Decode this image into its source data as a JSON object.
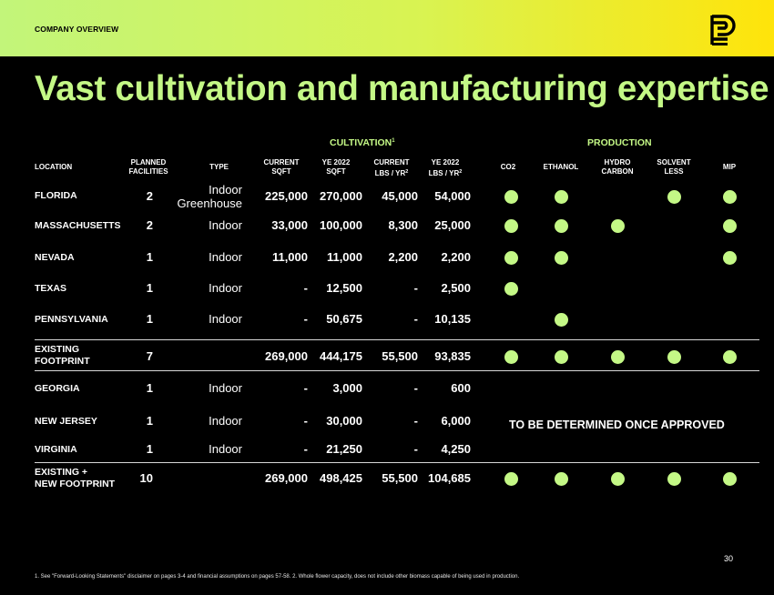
{
  "header": {
    "section_label": "COMPANY OVERVIEW",
    "logo_icon": "brand-logo-icon",
    "gradient_colors": [
      "#c2f57a",
      "#ffe40a"
    ]
  },
  "title": "Vast cultivation and manufacturing expertise",
  "groups": {
    "cultivation": "CULTIVATION",
    "cultivation_sup": "1",
    "production": "PRODUCTION"
  },
  "columns": {
    "location": "LOCATION",
    "planned_1": "PLANNED",
    "planned_2": "FACILITIES",
    "type": "TYPE",
    "current_sqft_1": "CURRENT",
    "current_sqft_2": "SQFT",
    "ye2022_sqft_1": "YE 2022",
    "ye2022_sqft_2": "SQFT",
    "current_lbs_1": "CURRENT",
    "current_lbs_2": "LBS / YR",
    "ye2022_lbs_1": "YE 2022",
    "ye2022_lbs_2": "LBS / YR",
    "lbs_sup": "2",
    "co2": "CO2",
    "ethanol": "ETHANOL",
    "hydrocarbon_1": "HYDRO",
    "hydrocarbon_2": "CARBON",
    "solventless_1": "SOLVENT",
    "solventless_2": "LESS",
    "mip": "MIP"
  },
  "rows": {
    "florida": {
      "location": "FLORIDA",
      "planned": "2",
      "type_1": "Indoor",
      "type_2": "Greenhouse",
      "current_sqft": "225,000",
      "ye_sqft": "270,000",
      "current_lbs": "45,000",
      "ye_lbs": "54,000",
      "production": [
        true,
        true,
        false,
        true,
        true
      ]
    },
    "massachusetts": {
      "location": "MASSACHUSETTS",
      "planned": "2",
      "type": "Indoor",
      "current_sqft": "33,000",
      "ye_sqft": "100,000",
      "current_lbs": "8,300",
      "ye_lbs": "25,000",
      "production": [
        true,
        true,
        true,
        false,
        true
      ]
    },
    "nevada": {
      "location": "NEVADA",
      "planned": "1",
      "type": "Indoor",
      "current_sqft": "11,000",
      "ye_sqft": "11,000",
      "current_lbs": "2,200",
      "ye_lbs": "2,200",
      "production": [
        true,
        true,
        false,
        false,
        true
      ]
    },
    "texas": {
      "location": "TEXAS",
      "planned": "1",
      "type": "Indoor",
      "current_sqft": "-",
      "ye_sqft": "12,500",
      "current_lbs": "-",
      "ye_lbs": "2,500",
      "production": [
        true,
        false,
        false,
        false,
        false
      ]
    },
    "pennsylvania": {
      "location": "PENNSYLVANIA",
      "planned": "1",
      "type": "Indoor",
      "current_sqft": "-",
      "ye_sqft": "50,675",
      "current_lbs": "-",
      "ye_lbs": "10,135",
      "production": [
        false,
        true,
        false,
        false,
        false
      ]
    },
    "existing": {
      "location_1": "EXISTING",
      "location_2": "FOOTPRINT",
      "planned": "7",
      "current_sqft": "269,000",
      "ye_sqft": "444,175",
      "current_lbs": "55,500",
      "ye_lbs": "93,835",
      "production": [
        true,
        true,
        true,
        true,
        true
      ]
    },
    "georgia": {
      "location": "GEORGIA",
      "planned": "1",
      "type": "Indoor",
      "current_sqft": "-",
      "ye_sqft": "3,000",
      "current_lbs": "-",
      "ye_lbs": "600"
    },
    "new_jersey": {
      "location": "NEW JERSEY",
      "planned": "1",
      "type": "Indoor",
      "current_sqft": "-",
      "ye_sqft": "30,000",
      "current_lbs": "-",
      "ye_lbs": "6,000"
    },
    "virginia": {
      "location": "VIRGINIA",
      "planned": "1",
      "type": "Indoor",
      "current_sqft": "-",
      "ye_sqft": "21,250",
      "current_lbs": "-",
      "ye_lbs": "4,250"
    },
    "total": {
      "location_1": "EXISTING +",
      "location_2": "NEW FOOTPRINT",
      "planned": "10",
      "current_sqft": "269,000",
      "ye_sqft": "498,425",
      "current_lbs": "55,500",
      "ye_lbs": "104,685",
      "production": [
        true,
        true,
        true,
        true,
        true
      ]
    }
  },
  "tbd_text": "TO BE DETERMINED ONCE APPROVED",
  "page_number": "30",
  "footnote": "1. See \"Forward-Looking Statements\" disclaimer on pages 3-4 and financial assumptions on pages 57-58. 2. Whole flower capacity, does not include other biomass capable of being used in production.",
  "colors": {
    "accent": "#c4f886",
    "background": "#000000"
  }
}
